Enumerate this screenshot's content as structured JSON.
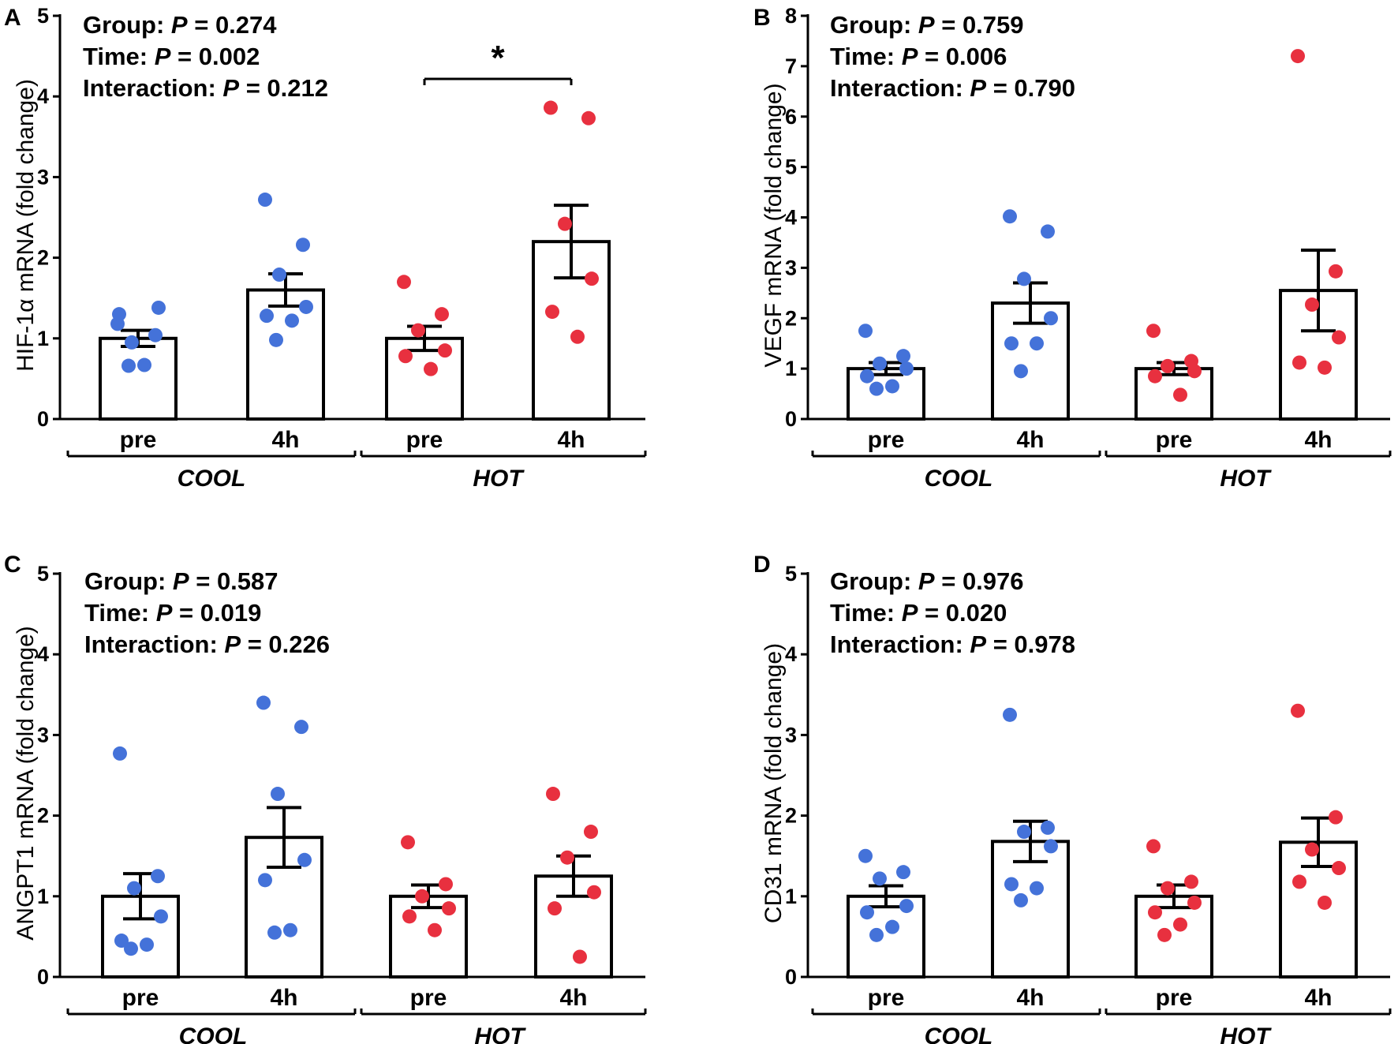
{
  "colors": {
    "cool": "#4472d9",
    "hot": "#e8303f",
    "ink": "#000000",
    "bar_fill": "#ffffff"
  },
  "chart_data": [
    {
      "type": "bar",
      "panel": "A",
      "ylabel": "HIF-1α mRNA  (fold change)",
      "ylim": [
        0,
        5
      ],
      "yticks": [
        0,
        1,
        2,
        3,
        4,
        5
      ],
      "categories": [
        "pre",
        "4h",
        "pre",
        "4h"
      ],
      "groups": [
        "COOL",
        "HOT"
      ],
      "stats": [
        {
          "name": "Group",
          "p_label": "P",
          "value": "= 0.274"
        },
        {
          "name": "Time",
          "p_label": "P",
          "value": "= 0.002"
        },
        {
          "name": "Interaction",
          "p_label": "P",
          "value": "= 0.212"
        }
      ],
      "significance": {
        "label": "*",
        "between": [
          2,
          3
        ]
      },
      "series": [
        {
          "name": "COOL pre",
          "group": "cool",
          "mean": 1.0,
          "sem": 0.1,
          "points": [
            1.18,
            1.04,
            0.95,
            1.38,
            1.3,
            0.67,
            0.66
          ]
        },
        {
          "name": "COOL 4h",
          "group": "cool",
          "mean": 1.6,
          "sem": 0.2,
          "points": [
            2.72,
            2.16,
            1.79,
            1.39,
            1.28,
            1.22,
            0.98
          ]
        },
        {
          "name": "HOT pre",
          "group": "hot",
          "mean": 1.0,
          "sem": 0.15,
          "points": [
            1.7,
            1.3,
            1.1,
            0.85,
            0.78,
            0.62
          ]
        },
        {
          "name": "HOT 4h",
          "group": "hot",
          "mean": 2.2,
          "sem": 0.45,
          "points": [
            3.86,
            3.73,
            2.42,
            1.74,
            1.33,
            1.02
          ]
        }
      ]
    },
    {
      "type": "bar",
      "panel": "B",
      "ylabel": "VEGF mRNA  (fold change)",
      "ylim": [
        0,
        8
      ],
      "yticks": [
        0,
        1,
        2,
        3,
        4,
        5,
        6,
        7,
        8
      ],
      "categories": [
        "pre",
        "4h",
        "pre",
        "4h"
      ],
      "groups": [
        "COOL",
        "HOT"
      ],
      "stats": [
        {
          "name": "Group",
          "p_label": "P",
          "value": "= 0.759"
        },
        {
          "name": "Time",
          "p_label": "P",
          "value": "= 0.006"
        },
        {
          "name": "Interaction",
          "p_label": "P",
          "value": "= 0.790"
        }
      ],
      "series": [
        {
          "name": "COOL pre",
          "group": "cool",
          "mean": 1.0,
          "sem": 0.12,
          "points": [
            1.75,
            1.25,
            1.1,
            1.0,
            0.85,
            0.65,
            0.6
          ]
        },
        {
          "name": "COOL 4h",
          "group": "cool",
          "mean": 2.3,
          "sem": 0.4,
          "points": [
            4.02,
            3.72,
            2.78,
            2.0,
            1.5,
            1.5,
            0.95
          ]
        },
        {
          "name": "HOT pre",
          "group": "hot",
          "mean": 1.0,
          "sem": 0.12,
          "points": [
            1.75,
            1.15,
            1.05,
            0.95,
            0.85,
            0.48
          ]
        },
        {
          "name": "HOT 4h",
          "group": "hot",
          "mean": 2.55,
          "sem": 0.8,
          "points": [
            7.2,
            2.93,
            2.27,
            1.62,
            1.12,
            1.02
          ]
        }
      ]
    },
    {
      "type": "bar",
      "panel": "C",
      "ylabel": "ANGPT1 mRNA  (fold change)",
      "ylim": [
        0,
        5
      ],
      "yticks": [
        0,
        1,
        2,
        3,
        4,
        5
      ],
      "categories": [
        "pre",
        "4h",
        "pre",
        "4h"
      ],
      "groups": [
        "COOL",
        "HOT"
      ],
      "stats": [
        {
          "name": "Group",
          "p_label": "P",
          "value": "= 0.587"
        },
        {
          "name": "Time",
          "p_label": "P",
          "value": "= 0.019"
        },
        {
          "name": "Interaction",
          "p_label": "P",
          "value": "= 0.226"
        }
      ],
      "series": [
        {
          "name": "COOL pre",
          "group": "cool",
          "mean": 1.0,
          "sem": 0.28,
          "points": [
            2.77,
            1.25,
            1.1,
            0.75,
            0.45,
            0.4,
            0.35
          ]
        },
        {
          "name": "COOL 4h",
          "group": "cool",
          "mean": 1.73,
          "sem": 0.37,
          "points": [
            3.4,
            3.1,
            2.27,
            1.45,
            1.2,
            0.58,
            0.55
          ]
        },
        {
          "name": "HOT pre",
          "group": "hot",
          "mean": 1.0,
          "sem": 0.14,
          "points": [
            1.67,
            1.15,
            1.0,
            0.85,
            0.75,
            0.58
          ]
        },
        {
          "name": "HOT 4h",
          "group": "hot",
          "mean": 1.25,
          "sem": 0.25,
          "points": [
            2.27,
            1.8,
            1.48,
            1.05,
            0.85,
            0.25
          ]
        }
      ]
    },
    {
      "type": "bar",
      "panel": "D",
      "ylabel": "CD31 mRNA  (fold change)",
      "ylim": [
        0,
        5
      ],
      "yticks": [
        0,
        1,
        2,
        3,
        4,
        5
      ],
      "categories": [
        "pre",
        "4h",
        "pre",
        "4h"
      ],
      "groups": [
        "COOL",
        "HOT"
      ],
      "stats": [
        {
          "name": "Group",
          "p_label": "P",
          "value": "= 0.976"
        },
        {
          "name": "Time",
          "p_label": "P",
          "value": "= 0.020"
        },
        {
          "name": "Interaction",
          "p_label": "P",
          "value": "= 0.978"
        }
      ],
      "series": [
        {
          "name": "COOL pre",
          "group": "cool",
          "mean": 1.0,
          "sem": 0.13,
          "points": [
            1.5,
            1.3,
            1.22,
            0.88,
            0.8,
            0.62,
            0.52
          ]
        },
        {
          "name": "COOL 4h",
          "group": "cool",
          "mean": 1.68,
          "sem": 0.25,
          "points": [
            3.25,
            1.85,
            1.8,
            1.62,
            1.15,
            1.1,
            0.95
          ]
        },
        {
          "name": "HOT pre",
          "group": "hot",
          "mean": 1.0,
          "sem": 0.14,
          "points": [
            1.62,
            1.18,
            1.1,
            0.92,
            0.8,
            0.65,
            0.52
          ]
        },
        {
          "name": "HOT 4h",
          "group": "hot",
          "mean": 1.67,
          "sem": 0.3,
          "points": [
            3.3,
            1.98,
            1.58,
            1.35,
            1.18,
            0.92
          ]
        }
      ]
    }
  ]
}
